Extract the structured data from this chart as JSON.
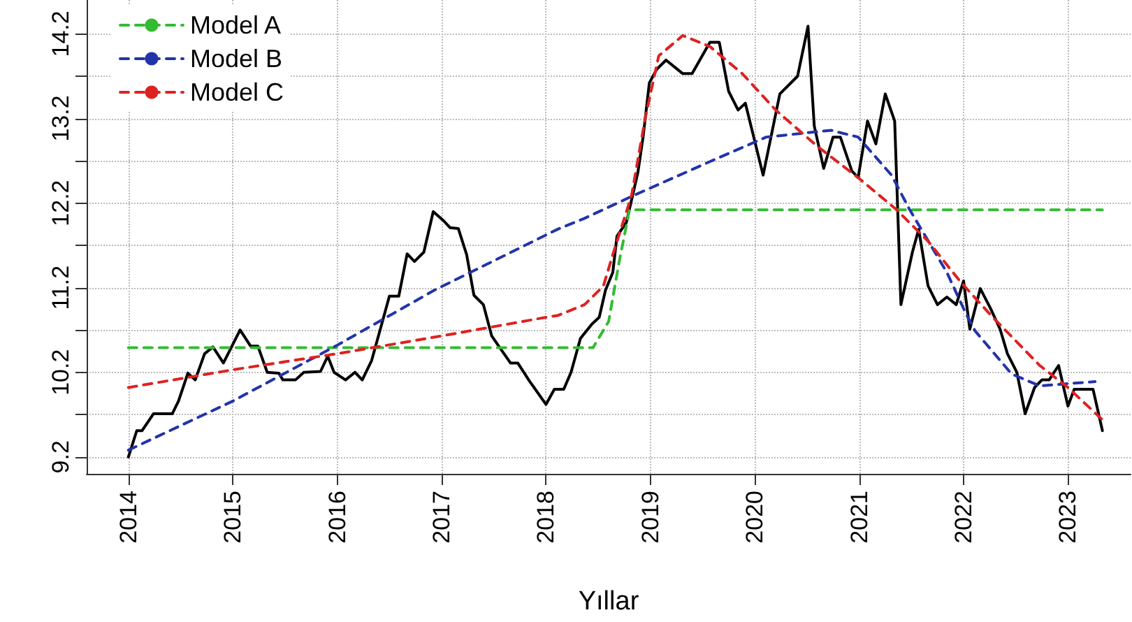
{
  "chart_data": {
    "type": "line",
    "xlabel": "Yıllar",
    "xlim": [
      2013.6,
      2023.6
    ],
    "xticks": [
      2014,
      2015,
      2016,
      2017,
      2018,
      2019,
      2020,
      2021,
      2022,
      2023
    ],
    "ylim": [
      9.0,
      14.6
    ],
    "yticks": [
      9.2,
      {
        "value": 9.7,
        "label": null
      },
      10.2,
      {
        "value": 10.7,
        "label": null
      },
      11.2,
      {
        "value": 11.7,
        "label": null
      },
      12.2,
      {
        "value": 12.7,
        "label": null
      },
      13.2,
      {
        "value": 13.7,
        "label": null
      },
      14.2
    ],
    "grid": true,
    "legend": "top left",
    "marker": "none",
    "series": [
      {
        "color": "#000000",
        "line_style": "solid",
        "x": [
          2014.0,
          2014.08,
          2014.13,
          2014.24,
          2014.42,
          2014.48,
          2014.57,
          2014.64,
          2014.73,
          2014.81,
          2014.91,
          2015.07,
          2015.17,
          2015.24,
          2015.33,
          2015.44,
          2015.48,
          2015.6,
          2015.68,
          2015.84,
          2015.91,
          2015.97,
          2016.08,
          2016.17,
          2016.24,
          2016.33,
          2016.42,
          2016.5,
          2016.59,
          2016.67,
          2016.74,
          2016.83,
          2016.92,
          2017.02,
          2017.08,
          2017.16,
          2017.24,
          2017.31,
          2017.4,
          2017.48,
          2017.57,
          2017.66,
          2017.73,
          2017.84,
          2018.0,
          2018.08,
          2018.17,
          2018.24,
          2018.33,
          2018.44,
          2018.51,
          2018.57,
          2018.64,
          2018.68,
          2018.77,
          2018.88,
          2018.93,
          2018.99,
          2019.06,
          2019.15,
          2019.31,
          2019.4,
          2019.57,
          2019.66,
          2019.75,
          2019.84,
          2019.91,
          2020.08,
          2020.24,
          2020.41,
          2020.51,
          2020.57,
          2020.66,
          2020.75,
          2020.82,
          2020.93,
          2020.99,
          2021.08,
          2021.16,
          2021.25,
          2021.34,
          2021.4,
          2021.51,
          2021.57,
          2021.66,
          2021.75,
          2021.84,
          2021.93,
          2022.0,
          2022.06,
          2022.16,
          2022.26,
          2022.35,
          2022.42,
          2022.51,
          2022.59,
          2022.68,
          2022.75,
          2022.82,
          2022.91,
          2023.0,
          2023.06,
          2023.24,
          2023.33
        ],
        "values": [
          9.2,
          9.51,
          9.51,
          9.71,
          9.71,
          9.86,
          10.19,
          10.11,
          10.42,
          10.5,
          10.31,
          10.7,
          10.51,
          10.51,
          10.2,
          10.19,
          10.11,
          10.11,
          10.2,
          10.21,
          10.39,
          10.2,
          10.11,
          10.2,
          10.11,
          10.34,
          10.74,
          11.1,
          11.1,
          11.6,
          11.51,
          11.62,
          12.1,
          11.99,
          11.91,
          11.9,
          11.59,
          11.11,
          11.0,
          10.63,
          10.47,
          10.31,
          10.31,
          10.1,
          9.82,
          10.0,
          10.0,
          10.2,
          10.6,
          10.77,
          10.85,
          11.17,
          11.38,
          11.81,
          11.97,
          12.56,
          12.98,
          13.62,
          13.78,
          13.89,
          13.73,
          13.73,
          14.1,
          14.1,
          13.52,
          13.3,
          13.38,
          12.53,
          13.49,
          13.7,
          14.29,
          13.11,
          12.61,
          12.98,
          12.98,
          12.58,
          12.5,
          13.17,
          12.9,
          13.49,
          13.17,
          11.0,
          11.62,
          11.89,
          11.22,
          11.0,
          11.09,
          11.0,
          11.28,
          10.71,
          11.19,
          10.95,
          10.71,
          10.42,
          10.2,
          9.71,
          10.02,
          10.11,
          10.11,
          10.28,
          9.8,
          10.0,
          10.0,
          9.51
        ]
      },
      {
        "name": "Model A",
        "color": "#33bb33",
        "line_style": "dashed",
        "x": [
          2014.0,
          2018.45,
          2018.6,
          2018.7,
          2018.8,
          2023.33
        ],
        "values": [
          10.49,
          10.49,
          10.8,
          11.5,
          12.12,
          12.12
        ]
      },
      {
        "name": "Model B",
        "color": "#2233aa",
        "line_style": "dashed",
        "x": [
          2014.0,
          2015.0,
          2016.0,
          2016.93,
          2018.11,
          2018.37,
          2018.84,
          2019.57,
          2020.11,
          2020.73,
          2020.99,
          2021.31,
          2021.48,
          2021.84,
          2022.02,
          2022.11,
          2022.46,
          2022.73,
          2023.26
        ],
        "values": [
          9.28,
          9.86,
          10.52,
          11.17,
          11.89,
          12.02,
          12.29,
          12.69,
          12.98,
          13.06,
          12.98,
          12.53,
          12.13,
          11.38,
          10.9,
          10.69,
          10.18,
          10.04,
          10.09
        ]
      },
      {
        "name": "Model C",
        "color": "#dd2222",
        "line_style": "dashed",
        "x": [
          2014.0,
          2015.0,
          2016.0,
          2017.0,
          2018.0,
          2018.11,
          2018.37,
          2018.55,
          2018.64,
          2018.82,
          2018.95,
          2019.08,
          2019.31,
          2019.57,
          2019.88,
          2020.2,
          2020.6,
          2020.99,
          2021.35,
          2021.66,
          2021.97,
          2022.28,
          2022.73,
          2023.0,
          2023.33
        ],
        "values": [
          10.02,
          10.23,
          10.42,
          10.63,
          10.85,
          10.87,
          11.0,
          11.22,
          11.59,
          12.29,
          13.2,
          13.94,
          14.18,
          14.05,
          13.73,
          13.3,
          12.87,
          12.5,
          12.13,
          11.75,
          11.27,
          10.85,
          10.28,
          10.02,
          9.64
        ]
      }
    ]
  }
}
